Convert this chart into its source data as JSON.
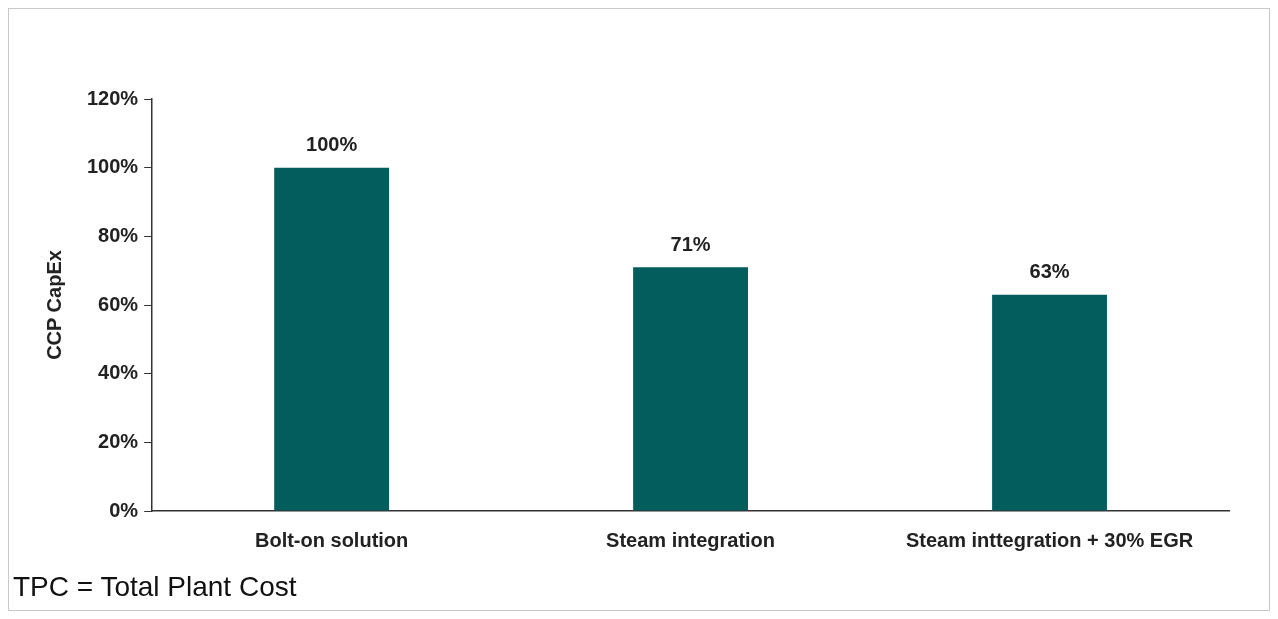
{
  "chart_data": {
    "type": "bar",
    "ylabel": "CCP CapEx",
    "categories": [
      "Bolt-on solution",
      "Steam integration",
      "Steam inttegration + 30% EGR"
    ],
    "values": [
      100,
      71,
      63
    ],
    "color": "#045d5d",
    "value_labels": [
      "100%",
      "71%",
      "63%"
    ],
    "ylim": [
      0,
      120
    ],
    "yticks": [
      {
        "value": 0,
        "label": "0%"
      },
      {
        "value": 20,
        "label": "20%"
      },
      {
        "value": 40,
        "label": "40%"
      },
      {
        "value": 60,
        "label": "60%"
      },
      {
        "value": 80,
        "label": "80%"
      },
      {
        "value": 100,
        "label": "100%"
      },
      {
        "value": 120,
        "label": "120%"
      }
    ],
    "grid": false,
    "legend": false,
    "annotations": [
      "TPC = Total Plant Cost"
    ]
  }
}
